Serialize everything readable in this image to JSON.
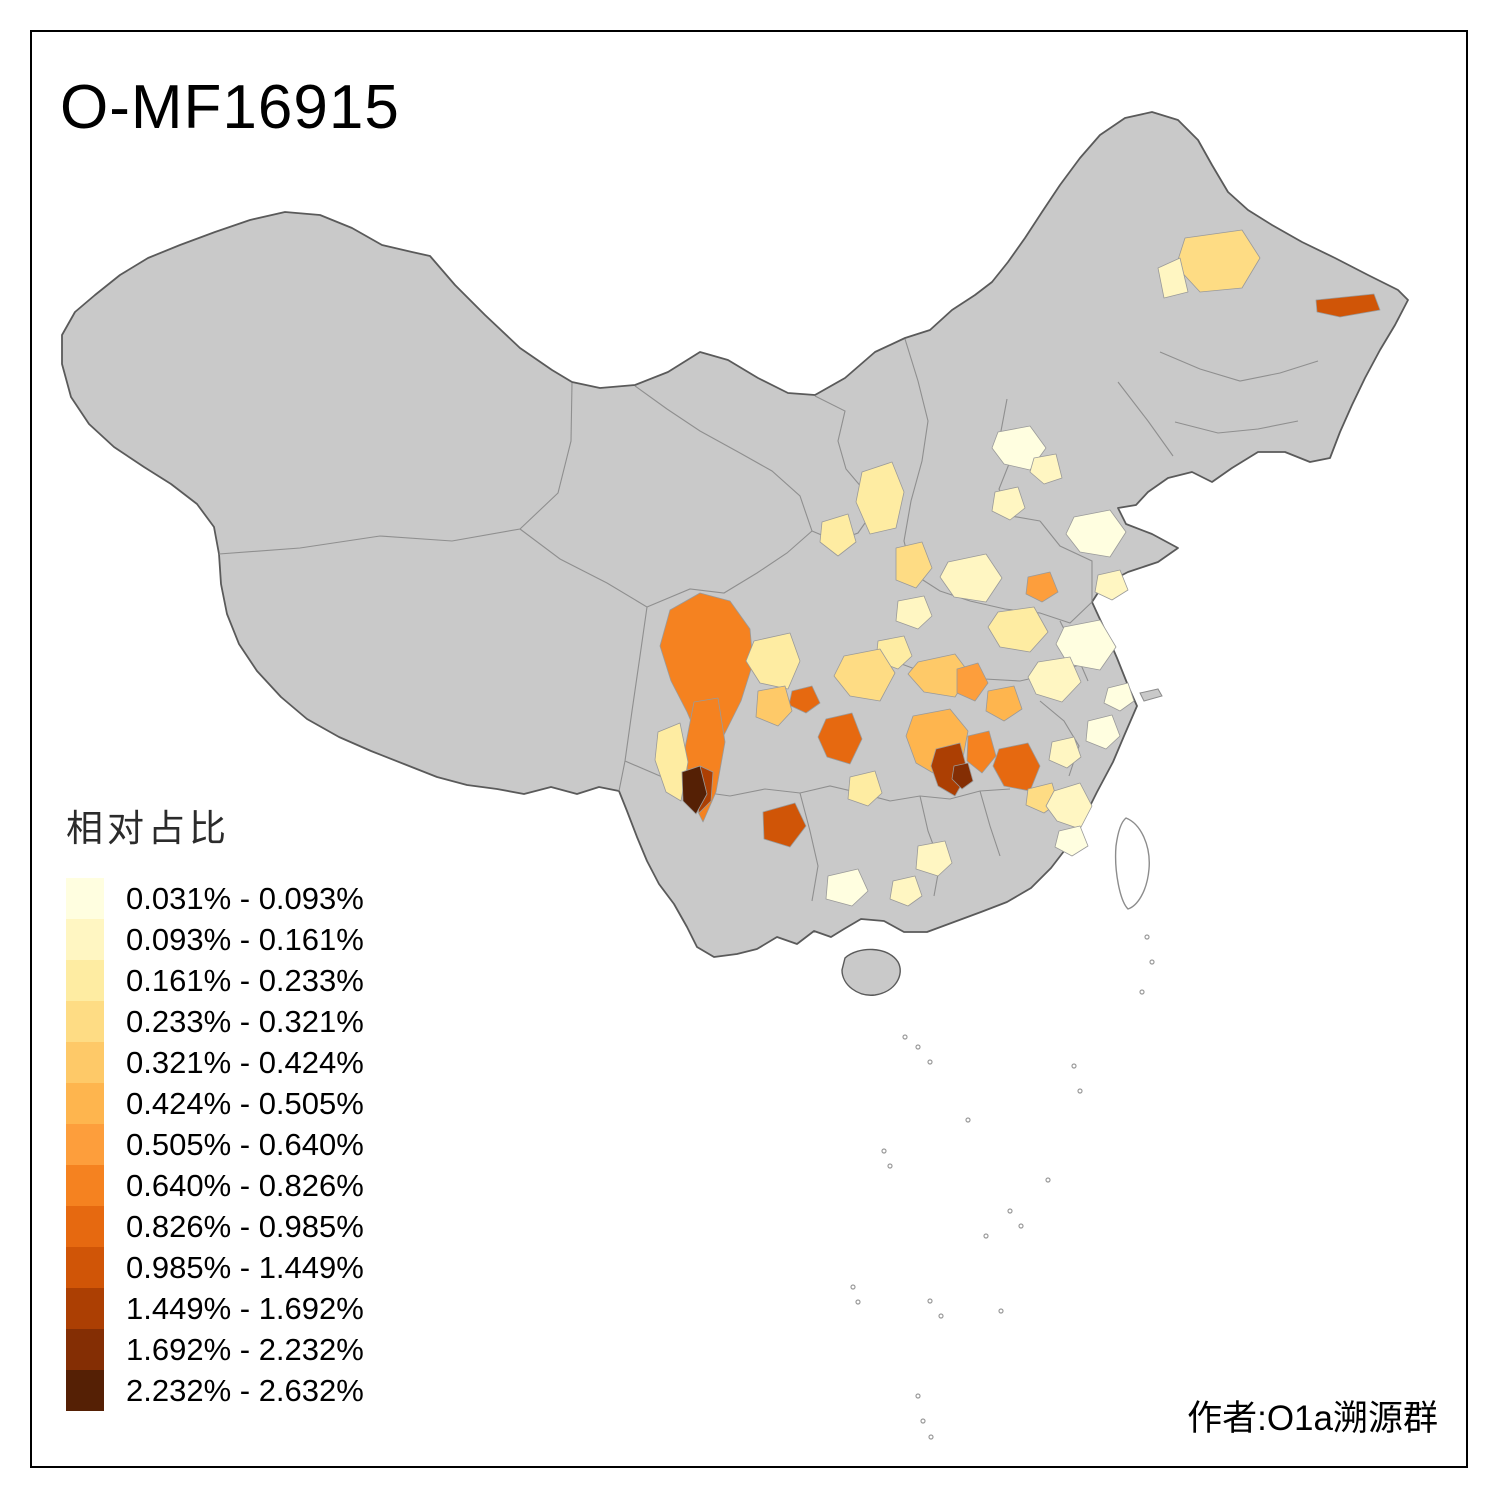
{
  "title": "O-MF16915",
  "legend": {
    "title": "相对占比"
  },
  "attribution": "作者:O1a溯源群",
  "map": {
    "land_fill": "#C9C9C9",
    "boundary_color": "#5A5A5A",
    "inner_border_color": "#8C8C8C",
    "island_fill": "#FFFFFF",
    "background": "#FFFFFF",
    "frame_color": "#000000"
  },
  "chart_data": {
    "type": "heatmap",
    "subtype": "choropleth map of China prefectures",
    "title": "O-MF16915",
    "legend_title": "相对占比",
    "legend_position": "bottom-left",
    "value_unit": "percent",
    "no_data_fill": "#C9C9C9",
    "bins": [
      {
        "label": "0.031% - 0.093%",
        "color": "#FFFEE0"
      },
      {
        "label": "0.093% - 0.161%",
        "color": "#FFF6C2"
      },
      {
        "label": "0.161% - 0.233%",
        "color": "#FEECA2"
      },
      {
        "label": "0.233% - 0.321%",
        "color": "#FEDC84"
      },
      {
        "label": "0.321% - 0.424%",
        "color": "#FEC968"
      },
      {
        "label": "0.424% - 0.505%",
        "color": "#FEB54E"
      },
      {
        "label": "0.505% - 0.640%",
        "color": "#FD9E3C"
      },
      {
        "label": "0.640% - 0.826%",
        "color": "#F58220"
      },
      {
        "label": "0.826% - 0.985%",
        "color": "#E66910"
      },
      {
        "label": "0.985% - 1.449%",
        "color": "#D05507"
      },
      {
        "label": "1.449% - 1.692%",
        "color": "#AC3F03"
      },
      {
        "label": "1.692% - 2.232%",
        "color": "#842E04"
      },
      {
        "label": "2.232% - 2.632%",
        "color": "#552005"
      }
    ]
  }
}
